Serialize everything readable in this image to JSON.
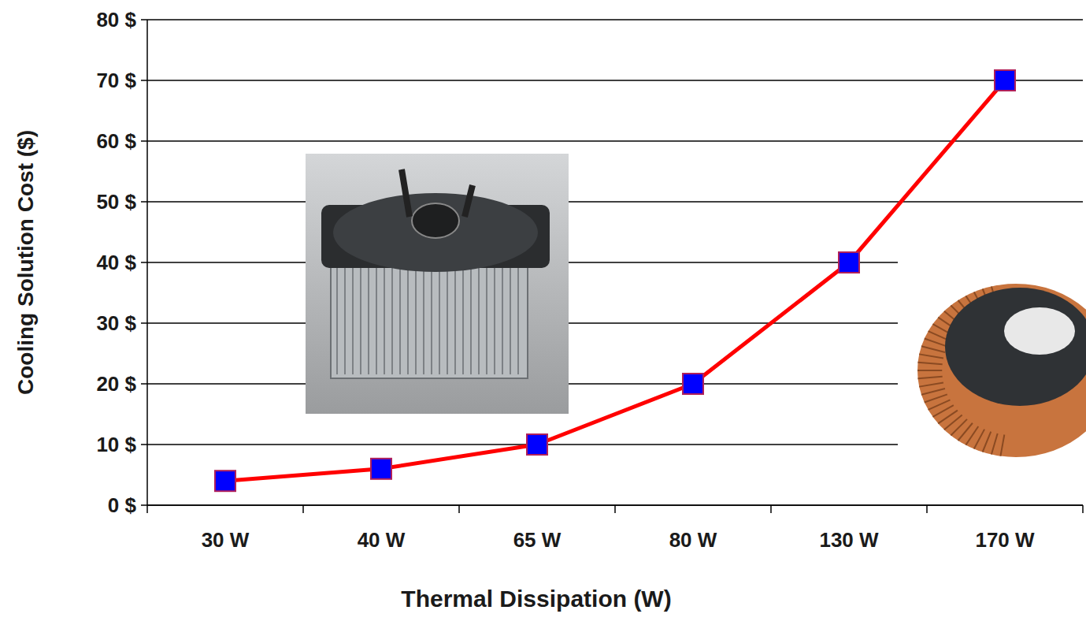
{
  "chart_data": {
    "type": "line",
    "x_label": "Thermal Dissipation (W)",
    "y_label": "Cooling Solution Cost ($)",
    "categories": [
      "30 W",
      "40 W",
      "65 W",
      "80 W",
      "130 W",
      "170 W"
    ],
    "values": [
      4,
      6,
      10,
      20,
      40,
      70
    ],
    "color": "#ff0000",
    "marker": "square",
    "line_style": "solid",
    "ylim": [
      0,
      80
    ],
    "yticks": [
      {
        "value": 0,
        "label": "0 $"
      },
      {
        "value": 10,
        "label": "10 $"
      },
      {
        "value": 20,
        "label": "20 $"
      },
      {
        "value": 30,
        "label": "30 $"
      },
      {
        "value": 40,
        "label": "40 $"
      },
      {
        "value": 50,
        "label": "50 $"
      },
      {
        "value": 60,
        "label": "60 $"
      },
      {
        "value": 70,
        "label": "70 $"
      },
      {
        "value": 80,
        "label": "80 $"
      }
    ],
    "grid": true
  }
}
